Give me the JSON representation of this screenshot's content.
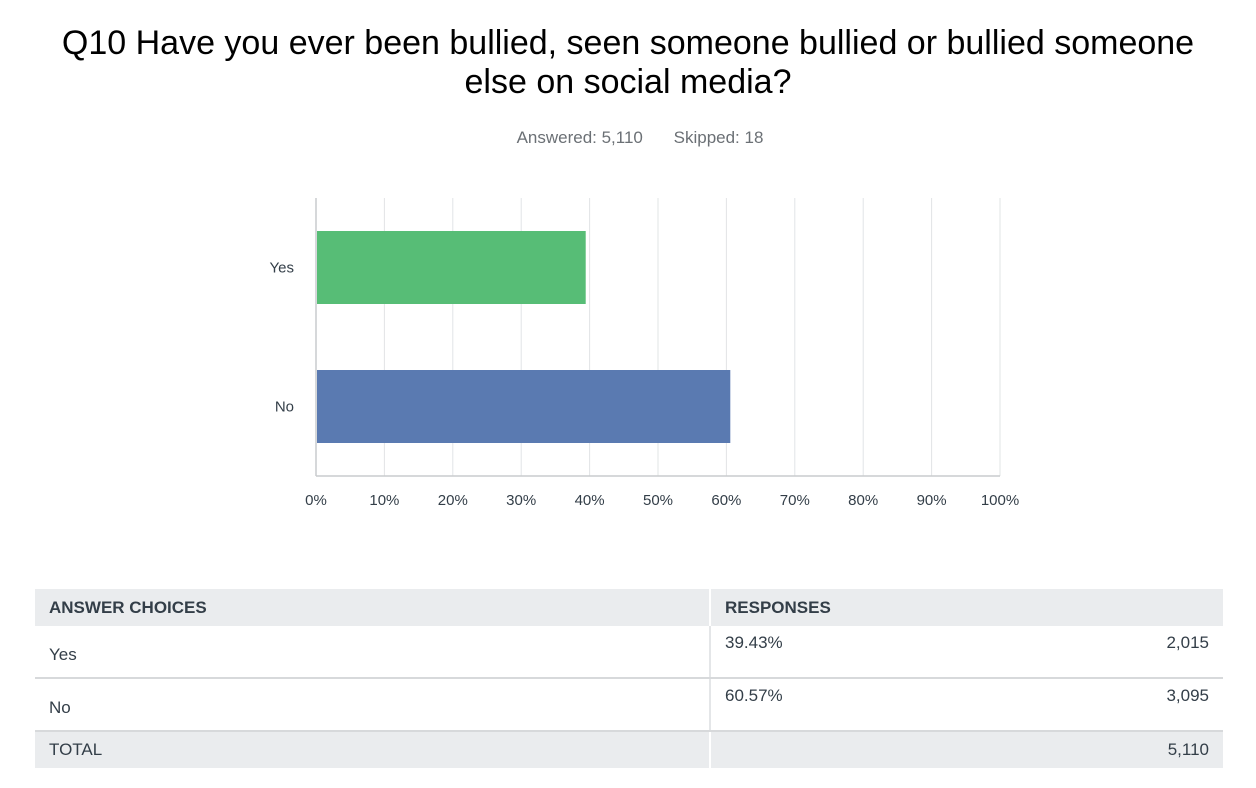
{
  "title": "Q10 Have you ever been bullied, seen someone bullied or bullied someone else on social media?",
  "answered": "Answered: 5,110",
  "skipped": "Skipped: 18",
  "colors": {
    "yes": "#57bd76",
    "no": "#5a7ab1",
    "grid": "#e2e4e6",
    "axis": "#c9cbcd"
  },
  "chart_data": {
    "type": "bar",
    "orientation": "horizontal",
    "categories": [
      "Yes",
      "No"
    ],
    "values": [
      39.43,
      60.57
    ],
    "xlim": [
      0,
      100
    ],
    "xticks": [
      "0%",
      "10%",
      "20%",
      "30%",
      "40%",
      "50%",
      "60%",
      "70%",
      "80%",
      "90%",
      "100%"
    ],
    "grid": true,
    "title": "",
    "xlabel": "",
    "ylabel": ""
  },
  "table": {
    "headers": {
      "choices": "ANSWER CHOICES",
      "responses": "RESPONSES"
    },
    "rows": [
      {
        "label": "Yes",
        "percent": "39.43%",
        "count": "2,015"
      },
      {
        "label": "No",
        "percent": "60.57%",
        "count": "3,095"
      }
    ],
    "total": {
      "label": "TOTAL",
      "count": "5,110"
    }
  }
}
